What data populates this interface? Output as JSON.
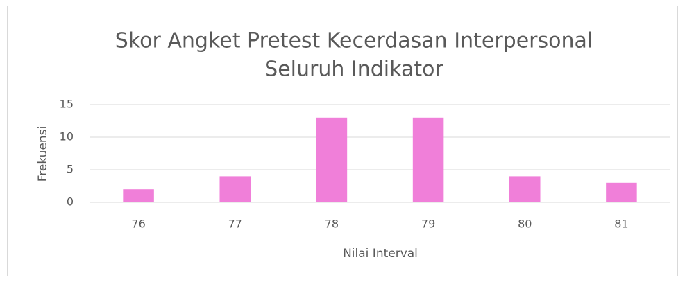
{
  "chart_data": {
    "type": "bar",
    "title": [
      "Skor Angket Pretest Kecerdasan Interpersonal",
      "Seluruh Indikator"
    ],
    "x_label": "Nilai Interval",
    "y_label": "Frekuensi",
    "categories": [
      "76",
      "77",
      "78",
      "79",
      "80",
      "81"
    ],
    "values": [
      2,
      4,
      13,
      13,
      4,
      3
    ],
    "color": "#f07fd9",
    "ylim": [
      0,
      15
    ],
    "yticks": [
      0,
      5,
      10,
      15
    ],
    "grid": true
  }
}
